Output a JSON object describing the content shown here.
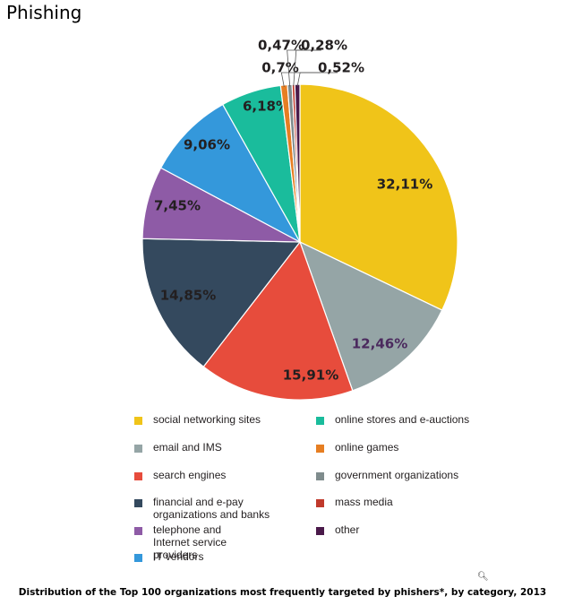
{
  "page_title": "Phishing",
  "caption": "Distribution of the Top 100 organizations most frequently targeted by phishers*, by category, 2013",
  "zoom_icon": "zoom-in-icon",
  "chart_data": {
    "type": "pie",
    "title": "Phishing",
    "start_angle_deg": 0,
    "direction": "clockwise",
    "slices": [
      {
        "category": "social networking sites",
        "value": 32.11,
        "label": "32,11%",
        "color": "#f0c419",
        "label_color": "#231f20"
      },
      {
        "category": "email and IMS",
        "value": 12.46,
        "label": "12,46%",
        "color": "#95a5a6",
        "label_color": "#4b2a5e"
      },
      {
        "category": "search engines",
        "value": 15.91,
        "label": "15,91%",
        "color": "#e74c3c",
        "label_color": "#231f20"
      },
      {
        "category": "financial and e-pay organizations and banks",
        "value": 14.85,
        "label": "14,85%",
        "color": "#34495e",
        "label_color": "#231f20"
      },
      {
        "category": "telephone and Internet service providers",
        "value": 7.45,
        "label": "7,45%",
        "color": "#8e5ba6",
        "label_color": "#231f20"
      },
      {
        "category": "IT vendors",
        "value": 9.06,
        "label": "9,06%",
        "color": "#3498db",
        "label_color": "#231f20"
      },
      {
        "category": "online stores and e-auctions",
        "value": 6.18,
        "label": "6,18%",
        "color": "#1abc9c",
        "label_color": "#231f20"
      },
      {
        "category": "online games",
        "value": 0.7,
        "label": "0,7%",
        "color": "#e67e22",
        "label_color": "#231f20"
      },
      {
        "category": "government organizations",
        "value": 0.47,
        "label": "0,47%",
        "color": "#7f8c8d",
        "label_color": "#231f20"
      },
      {
        "category": "mass media",
        "value": 0.28,
        "label": "0,28%",
        "color": "#c0392b",
        "label_color": "#231f20"
      },
      {
        "category": "other",
        "value": 0.52,
        "label": "0,52%",
        "color": "#4a1a4a",
        "label_color": "#231f20"
      }
    ],
    "legend": {
      "left_column": [
        {
          "label": "social networking sites",
          "color": "#f0c419"
        },
        {
          "label": "email and IMS",
          "color": "#95a5a6"
        },
        {
          "label": "search engines",
          "color": "#e74c3c"
        },
        {
          "label": "financial and e-pay organizations and banks",
          "color": "#34495e"
        },
        {
          "label": "telephone and Internet service providers",
          "color": "#8e5ba6"
        },
        {
          "label": "IT vendors",
          "color": "#3498db"
        }
      ],
      "right_column": [
        {
          "label": "online stores and e-auctions",
          "color": "#1abc9c"
        },
        {
          "label": "online games",
          "color": "#e67e22"
        },
        {
          "label": "government organizations",
          "color": "#7f8c8d"
        },
        {
          "label": "mass media",
          "color": "#c0392b"
        },
        {
          "label": "other",
          "color": "#4a1a4a"
        }
      ]
    }
  }
}
